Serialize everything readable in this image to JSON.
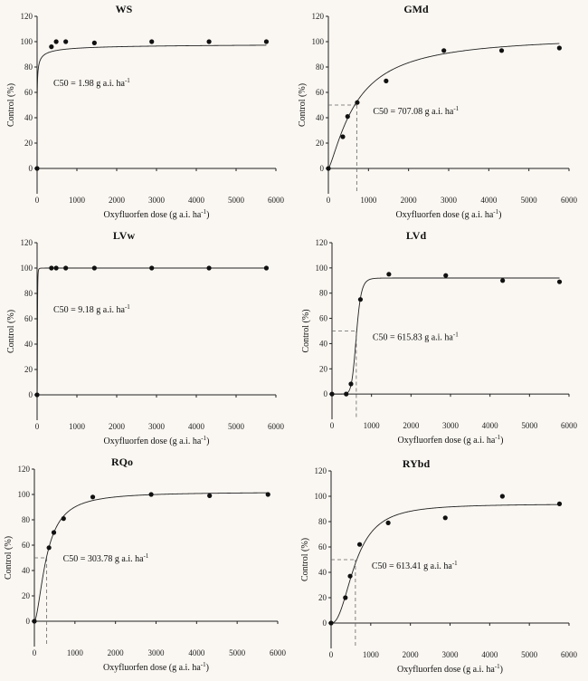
{
  "chart_data": [
    {
      "type": "scatter",
      "title": "WS",
      "xlabel": "Oxyfluorfen dose (g a.i. ha",
      "xlabel_sup": "-1",
      "ylabel": "Control (%)",
      "xlim": [
        0,
        6000
      ],
      "ylim": [
        -20,
        120
      ],
      "xticks": [
        "0",
        "1000",
        "2000",
        "3000",
        "4000",
        "5000",
        "6000"
      ],
      "yticks": [
        "0",
        "20",
        "40",
        "60",
        "80",
        "100",
        "120"
      ],
      "points": {
        "x": [
          0,
          360,
          480,
          720,
          1440,
          2880,
          4320,
          5760
        ],
        "y": [
          0,
          96,
          100,
          100,
          99,
          100,
          100,
          100
        ]
      },
      "curve": {
        "top": 99,
        "c50": 1.98,
        "slope": 0.5,
        "end_top": 100
      },
      "c50_label": "C50 = 1.98 g a.i. ha",
      "c50_sup": "-1",
      "show_c50_guide": false
    },
    {
      "type": "scatter",
      "title": "GMd",
      "xlabel": "Oxyfluorfen dose (g a.i. ha",
      "xlabel_sup": "-1",
      "ylabel": "Control (%)",
      "xlim": [
        0,
        6000
      ],
      "ylim": [
        -20,
        120
      ],
      "xticks": [
        "0",
        "1000",
        "2000",
        "3000",
        "4000",
        "5000",
        "6000"
      ],
      "yticks": [
        "0",
        "20",
        "40",
        "60",
        "80",
        "100",
        "120"
      ],
      "points": {
        "x": [
          0,
          360,
          480,
          720,
          1440,
          2880,
          4320,
          5760
        ],
        "y": [
          0,
          25,
          41,
          52,
          69,
          93,
          93,
          95
        ]
      },
      "curve": {
        "top": 105,
        "c50": 707.08,
        "slope": 1.3
      },
      "c50_label": "C50 = 707.08 g a.i. ha",
      "c50_sup": "-1",
      "show_c50_guide": true
    },
    {
      "type": "scatter",
      "title": "LVw",
      "xlabel": "Oxyfluorfen dose (g a.i. ha",
      "xlabel_sup": "-1",
      "ylabel": "Control (%)",
      "xlim": [
        0,
        6000
      ],
      "ylim": [
        -20,
        120
      ],
      "xticks": [
        "0",
        "1000",
        "2000",
        "3000",
        "4000",
        "5000",
        "6000"
      ],
      "yticks": [
        "0",
        "20",
        "40",
        "60",
        "80",
        "100",
        "120"
      ],
      "points": {
        "x": [
          0,
          360,
          480,
          720,
          1440,
          2880,
          4320,
          5760
        ],
        "y": [
          0,
          100,
          100,
          100,
          100,
          100,
          100,
          100
        ]
      },
      "curve": {
        "top": 100,
        "c50": 9.18,
        "slope": 3
      },
      "c50_label": "C50 = 9.18 g a.i. ha",
      "c50_sup": "-1",
      "show_c50_guide": false
    },
    {
      "type": "scatter",
      "title": "LVd",
      "xlabel": "Oxyfluorfen dose (g a.i. ha",
      "xlabel_sup": "-1",
      "ylabel": "Control (%)",
      "xlim": [
        0,
        6000
      ],
      "ylim": [
        -20,
        120
      ],
      "xticks": [
        "0",
        "1000",
        "2000",
        "3000",
        "4000",
        "5000",
        "6000"
      ],
      "yticks": [
        "0",
        "20",
        "40",
        "60",
        "80",
        "100",
        "120"
      ],
      "points": {
        "x": [
          0,
          360,
          480,
          720,
          1440,
          2880,
          4320,
          5760
        ],
        "y": [
          0,
          0,
          8,
          75,
          95,
          94,
          90,
          89
        ]
      },
      "curve": {
        "top": 92,
        "c50": 615.83,
        "slope": 10
      },
      "c50_label": "C50 = 615.83 g a.i. ha",
      "c50_sup": "-1",
      "show_c50_guide": true
    },
    {
      "type": "scatter",
      "title": "RQo",
      "xlabel": "Oxyfluorfen dose (g a.i. ha",
      "xlabel_sup": "-1",
      "ylabel": "Control (%)",
      "xlim": [
        0,
        6000
      ],
      "ylim": [
        -20,
        120
      ],
      "xticks": [
        "0",
        "1000",
        "2000",
        "3000",
        "4000",
        "5000",
        "6000"
      ],
      "yticks": [
        "0",
        "20",
        "40",
        "60",
        "80",
        "100",
        "120"
      ],
      "points": {
        "x": [
          0,
          360,
          480,
          720,
          1440,
          2880,
          4320,
          5760
        ],
        "y": [
          0,
          58,
          70,
          81,
          98,
          100,
          99,
          100
        ]
      },
      "curve": {
        "top": 102,
        "c50": 303.78,
        "slope": 1.7
      },
      "c50_label": "C50 = 303.78 g a.i. ha",
      "c50_sup": "-1",
      "show_c50_guide": true
    },
    {
      "type": "scatter",
      "title": "RYbd",
      "xlabel": "Oxyfluorfen dose (g a.i. ha",
      "xlabel_sup": "-1",
      "ylabel": "Control (%)",
      "xlim": [
        0,
        6000
      ],
      "ylim": [
        -20,
        120
      ],
      "xticks": [
        "0",
        "1000",
        "2000",
        "3000",
        "4000",
        "5000",
        "6000"
      ],
      "yticks": [
        "0",
        "20",
        "40",
        "60",
        "80",
        "100",
        "120"
      ],
      "points": {
        "x": [
          0,
          360,
          480,
          720,
          1440,
          2880,
          4320,
          5760
        ],
        "y": [
          0,
          20,
          37,
          62,
          79,
          83,
          100,
          94
        ]
      },
      "curve": {
        "top": 94,
        "c50": 613.41,
        "slope": 2.3
      },
      "c50_label": "C50 = 613.41 g a.i. ha",
      "c50_sup": "-1",
      "show_c50_guide": true
    }
  ]
}
